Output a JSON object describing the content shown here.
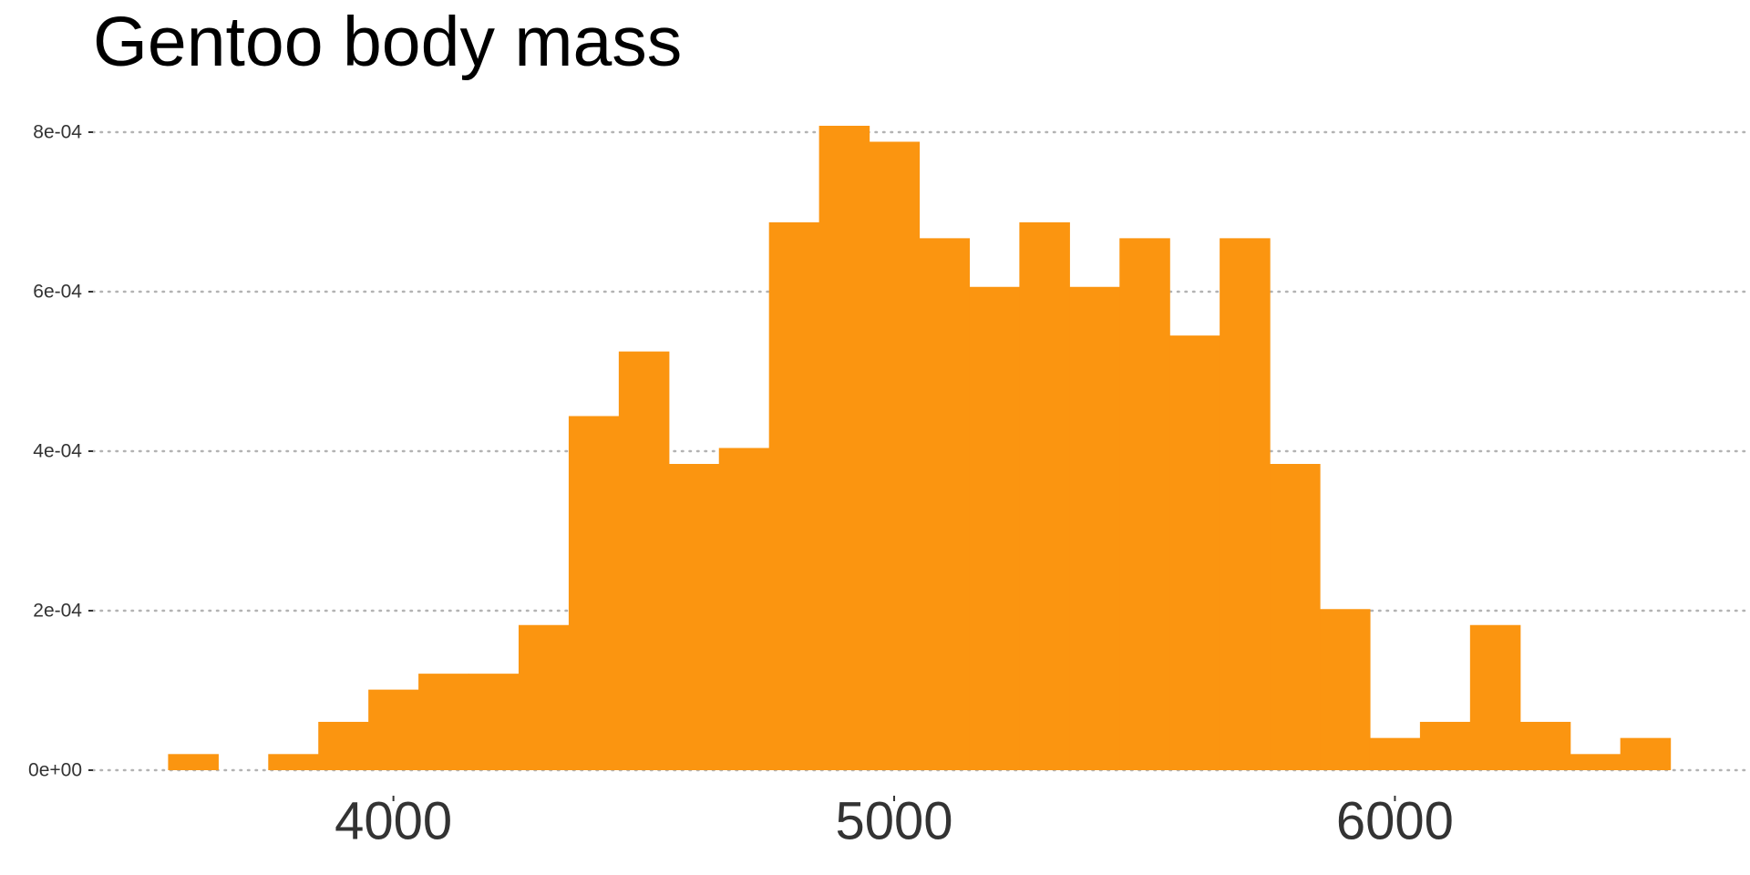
{
  "chart_data": {
    "type": "bar",
    "title": "Gentoo body mass",
    "xlabel": "",
    "ylabel": "",
    "bin_width": 100,
    "bin_edges": [
      3550,
      3650,
      3750,
      3850,
      3950,
      4050,
      4150,
      4250,
      4350,
      4450,
      4550,
      4650,
      4750,
      4850,
      4950,
      5050,
      5150,
      5250,
      5350,
      5450,
      5550,
      5650,
      5750,
      5850,
      5950,
      6050,
      6150,
      6250,
      6350,
      6450,
      6550
    ],
    "values": [
      2.02e-05,
      0,
      2.02e-05,
      6.06e-05,
      0.000101,
      0.000121,
      0.000121,
      0.000182,
      0.000444,
      0.000525,
      0.000384,
      0.000404,
      0.000687,
      0.000808,
      0.000788,
      0.000667,
      0.000606,
      0.000687,
      0.000606,
      0.000667,
      0.000545,
      0.000667,
      0.000384,
      0.000202,
      4.04e-05,
      6.06e-05,
      0.000182,
      6.06e-05,
      2.02e-05,
      4.04e-05
    ],
    "xlim": [
      3400,
      6700
    ],
    "ylim": [
      0,
      0.0008
    ],
    "x_ticks": [
      4000,
      5000,
      6000
    ],
    "x_tick_labels": [
      "4000",
      "5000",
      "6000"
    ],
    "y_ticks": [
      0,
      0.0002,
      0.0004,
      0.0006,
      0.0008
    ],
    "y_tick_labels": [
      "0e+00",
      "2e-04",
      "4e-04",
      "6e-04",
      "8e-04"
    ],
    "grid": "horizontal dotted",
    "legend": "none",
    "bar_color": "#FB9510",
    "grid_color": "#B3B3B3",
    "tick_color": "#333333",
    "title_color": "#000000"
  }
}
